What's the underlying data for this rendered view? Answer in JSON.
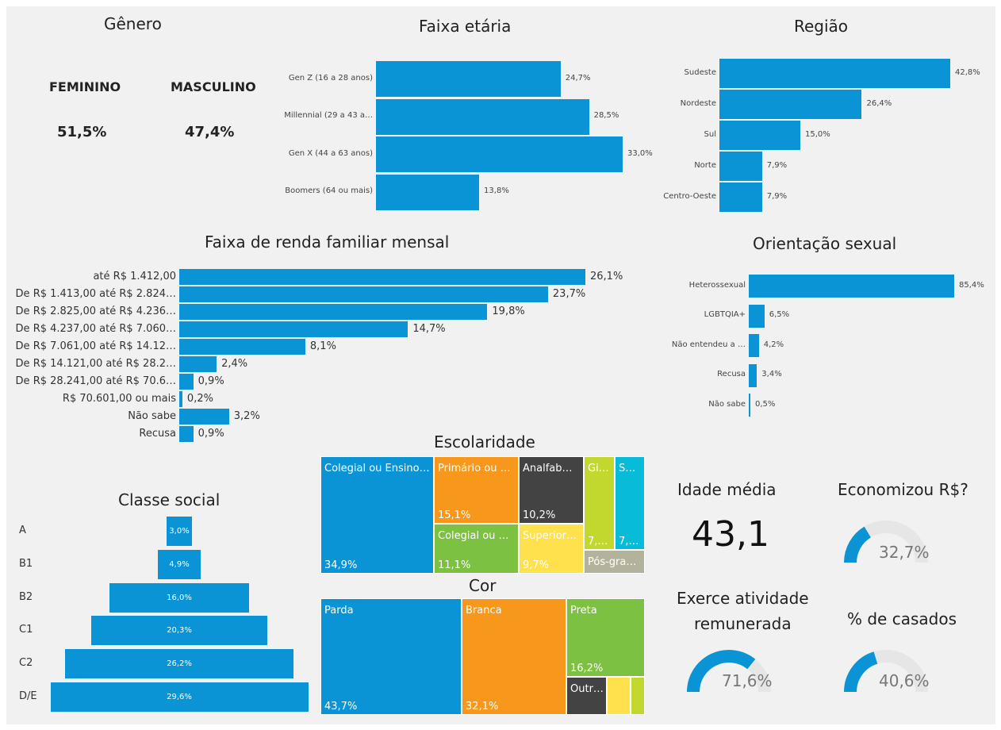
{
  "genero": {
    "title": "Gênero",
    "feminino_label": "FEMININO",
    "feminino_value": "51,5%",
    "masculino_label": "MASCULINO",
    "masculino_value": "47,4%"
  },
  "chart_data": [
    {
      "id": "faixa_etaria",
      "type": "bar",
      "orientation": "horizontal",
      "title": "Faixa etária",
      "categories": [
        "Gen Z (16 a 28 anos)",
        "Millennial (29 a 43 a…",
        "Gen X (44 a 63 anos)",
        "Boomers (64 ou mais)"
      ],
      "values": [
        24.7,
        28.5,
        33.0,
        13.8
      ],
      "value_labels": [
        "24,7%",
        "28,5%",
        "33,0%",
        "13,8%"
      ]
    },
    {
      "id": "regiao",
      "type": "bar",
      "orientation": "horizontal",
      "title": "Região",
      "categories": [
        "Sudeste",
        "Nordeste",
        "Sul",
        "Norte",
        "Centro-Oeste"
      ],
      "values": [
        42.8,
        26.4,
        15.0,
        7.9,
        7.9
      ],
      "value_labels": [
        "42,8%",
        "26,4%",
        "15,0%",
        "7,9%",
        "7,9%"
      ]
    },
    {
      "id": "renda",
      "type": "bar",
      "orientation": "horizontal",
      "title": "Faixa de renda familiar mensal",
      "categories": [
        "até R$ 1.412,00",
        "De R$ 1.413,00 até R$ 2.824…",
        "De R$ 2.825,00 até R$ 4.236…",
        "De R$ 4.237,00 até R$ 7.060…",
        "De R$ 7.061,00 até R$ 14.12…",
        "De R$ 14.121,00 até R$ 28.2…",
        "De R$ 28.241,00 até R$ 70.6…",
        "R$ 70.601,00 ou mais",
        "Não sabe",
        "Recusa"
      ],
      "values": [
        26.1,
        23.7,
        19.8,
        14.7,
        8.1,
        2.4,
        0.9,
        0.2,
        3.2,
        0.9
      ],
      "value_labels": [
        "26,1%",
        "23,7%",
        "19,8%",
        "14,7%",
        "8,1%",
        "2,4%",
        "0,9%",
        "0,2%",
        "3,2%",
        "0,9%"
      ]
    },
    {
      "id": "orientacao",
      "type": "bar",
      "orientation": "horizontal",
      "title": "Orientação sexual",
      "categories": [
        "Heterossexual",
        "LGBTQIA+",
        "Não entendeu a …",
        "Recusa",
        "Não sabe"
      ],
      "values": [
        85.4,
        6.5,
        4.2,
        3.4,
        0.5
      ],
      "value_labels": [
        "85,4%",
        "6,5%",
        "4,2%",
        "3,4%",
        "0,5%"
      ]
    },
    {
      "id": "classe",
      "type": "bar",
      "orientation": "funnel",
      "title": "Classe social",
      "categories": [
        "A",
        "B1",
        "B2",
        "C1",
        "C2",
        "D/E"
      ],
      "values": [
        3.0,
        4.9,
        16.0,
        20.3,
        26.2,
        29.6
      ],
      "value_labels": [
        "3,0%",
        "4,9%",
        "16,0%",
        "20,3%",
        "26,2%",
        "29,6%"
      ]
    },
    {
      "id": "escolaridade",
      "type": "treemap",
      "title": "Escolaridade",
      "tiles": [
        {
          "label": "Colegial ou Ensino…",
          "value_label": "34,9%",
          "color": "#0a94d6"
        },
        {
          "label": "Primário ou …",
          "value_label": "15,1%",
          "color": "#f7981d"
        },
        {
          "label": "Analfab…",
          "value_label": "10,2%",
          "color": "#434343"
        },
        {
          "label": "Gi…",
          "value_label": "7,…",
          "color": "#c3d82e"
        },
        {
          "label": "S…",
          "value_label": "7,…",
          "color": "#07bbd9"
        },
        {
          "label": "Colegial ou …",
          "value_label": "11,1%",
          "color": "#7cc142"
        },
        {
          "label": "Superior…",
          "value_label": "9,7%",
          "color": "#ffe04d"
        },
        {
          "label": "Pós-gra…",
          "value_label": "",
          "color": "#b3b39d"
        }
      ]
    },
    {
      "id": "cor",
      "type": "treemap",
      "title": "Cor",
      "tiles": [
        {
          "label": "Parda",
          "value_label": "43,7%",
          "color": "#0a94d6"
        },
        {
          "label": "Branca",
          "value_label": "32,1%",
          "color": "#f7981d"
        },
        {
          "label": "Preta",
          "value_label": "16,2%",
          "color": "#7cc142"
        },
        {
          "label": "Outr…",
          "value_label": "",
          "color": "#434343"
        },
        {
          "label": "",
          "value_label": "",
          "color": "#ffe04d"
        },
        {
          "label": "",
          "value_label": "",
          "color": "#c3d82e"
        }
      ]
    }
  ],
  "kpis": {
    "idade_title": "Idade média",
    "idade_value": "43,1",
    "economizou_title": "Economizou R$?",
    "economizou_value": "32,7%",
    "economizou_fraction": 0.327,
    "exerce_title_1": "Exerce atividade",
    "exerce_title_2": "remunerada",
    "exerce_value": "71,6%",
    "exerce_fraction": 0.716,
    "casados_title": "% de casados",
    "casados_value": "40,6%",
    "casados_fraction": 0.406
  },
  "colors": {
    "bar": "#0a94d6",
    "gauge_fill": "#0a94d6",
    "gauge_track": "#e6e6e6",
    "background": "#f1f1f1"
  }
}
